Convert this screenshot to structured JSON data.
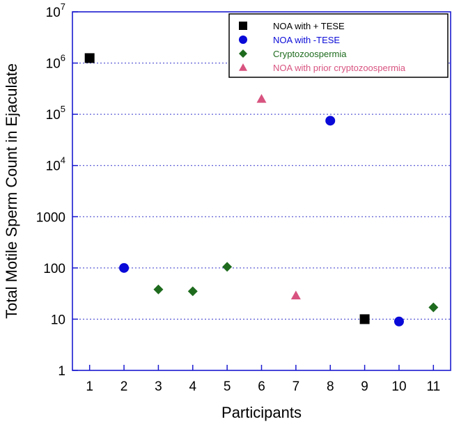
{
  "chart_data": {
    "type": "scatter",
    "title": "",
    "xlabel": "Participants",
    "ylabel": "Total Motile Sperm Count in Ejaculate",
    "yscale": "log",
    "xlim": [
      0.5,
      11.5
    ],
    "ylim": [
      1,
      10000000
    ],
    "x_ticks": [
      "1",
      "2",
      "3",
      "4",
      "5",
      "6",
      "7",
      "8",
      "9",
      "10",
      "11"
    ],
    "y_ticks": [
      {
        "value": 1,
        "base": "1",
        "exp": ""
      },
      {
        "value": 10,
        "base": "10",
        "exp": ""
      },
      {
        "value": 100,
        "base": "100",
        "exp": ""
      },
      {
        "value": 1000,
        "base": "1000",
        "exp": ""
      },
      {
        "value": 10000,
        "base": "10",
        "exp": "4"
      },
      {
        "value": 100000,
        "base": "10",
        "exp": "5"
      },
      {
        "value": 1000000,
        "base": "10",
        "exp": "6"
      },
      {
        "value": 10000000,
        "base": "10",
        "exp": "7"
      }
    ],
    "grid": "horizontal dotted",
    "legend_position": "top-right",
    "series": [
      {
        "name": "NOA with + TESE",
        "marker": "square",
        "color": "#000000",
        "points": [
          {
            "x": 1,
            "y": 1250000
          },
          {
            "x": 9,
            "y": 10
          }
        ]
      },
      {
        "name": "NOA with -TESE",
        "marker": "circle",
        "color": "#0a0ad8",
        "points": [
          {
            "x": 2,
            "y": 100
          },
          {
            "x": 8,
            "y": 75000
          },
          {
            "x": 10,
            "y": 9
          }
        ]
      },
      {
        "name": "Cryptozoospermia",
        "marker": "diamond",
        "color": "#1e6b1e",
        "points": [
          {
            "x": 3,
            "y": 38
          },
          {
            "x": 4,
            "y": 35
          },
          {
            "x": 5,
            "y": 105
          },
          {
            "x": 11,
            "y": 17
          }
        ]
      },
      {
        "name": "NOA with prior cryptozoospermia",
        "marker": "triangle",
        "color": "#d8537f",
        "points": [
          {
            "x": 6,
            "y": 200000
          },
          {
            "x": 7,
            "y": 29
          }
        ]
      }
    ]
  }
}
